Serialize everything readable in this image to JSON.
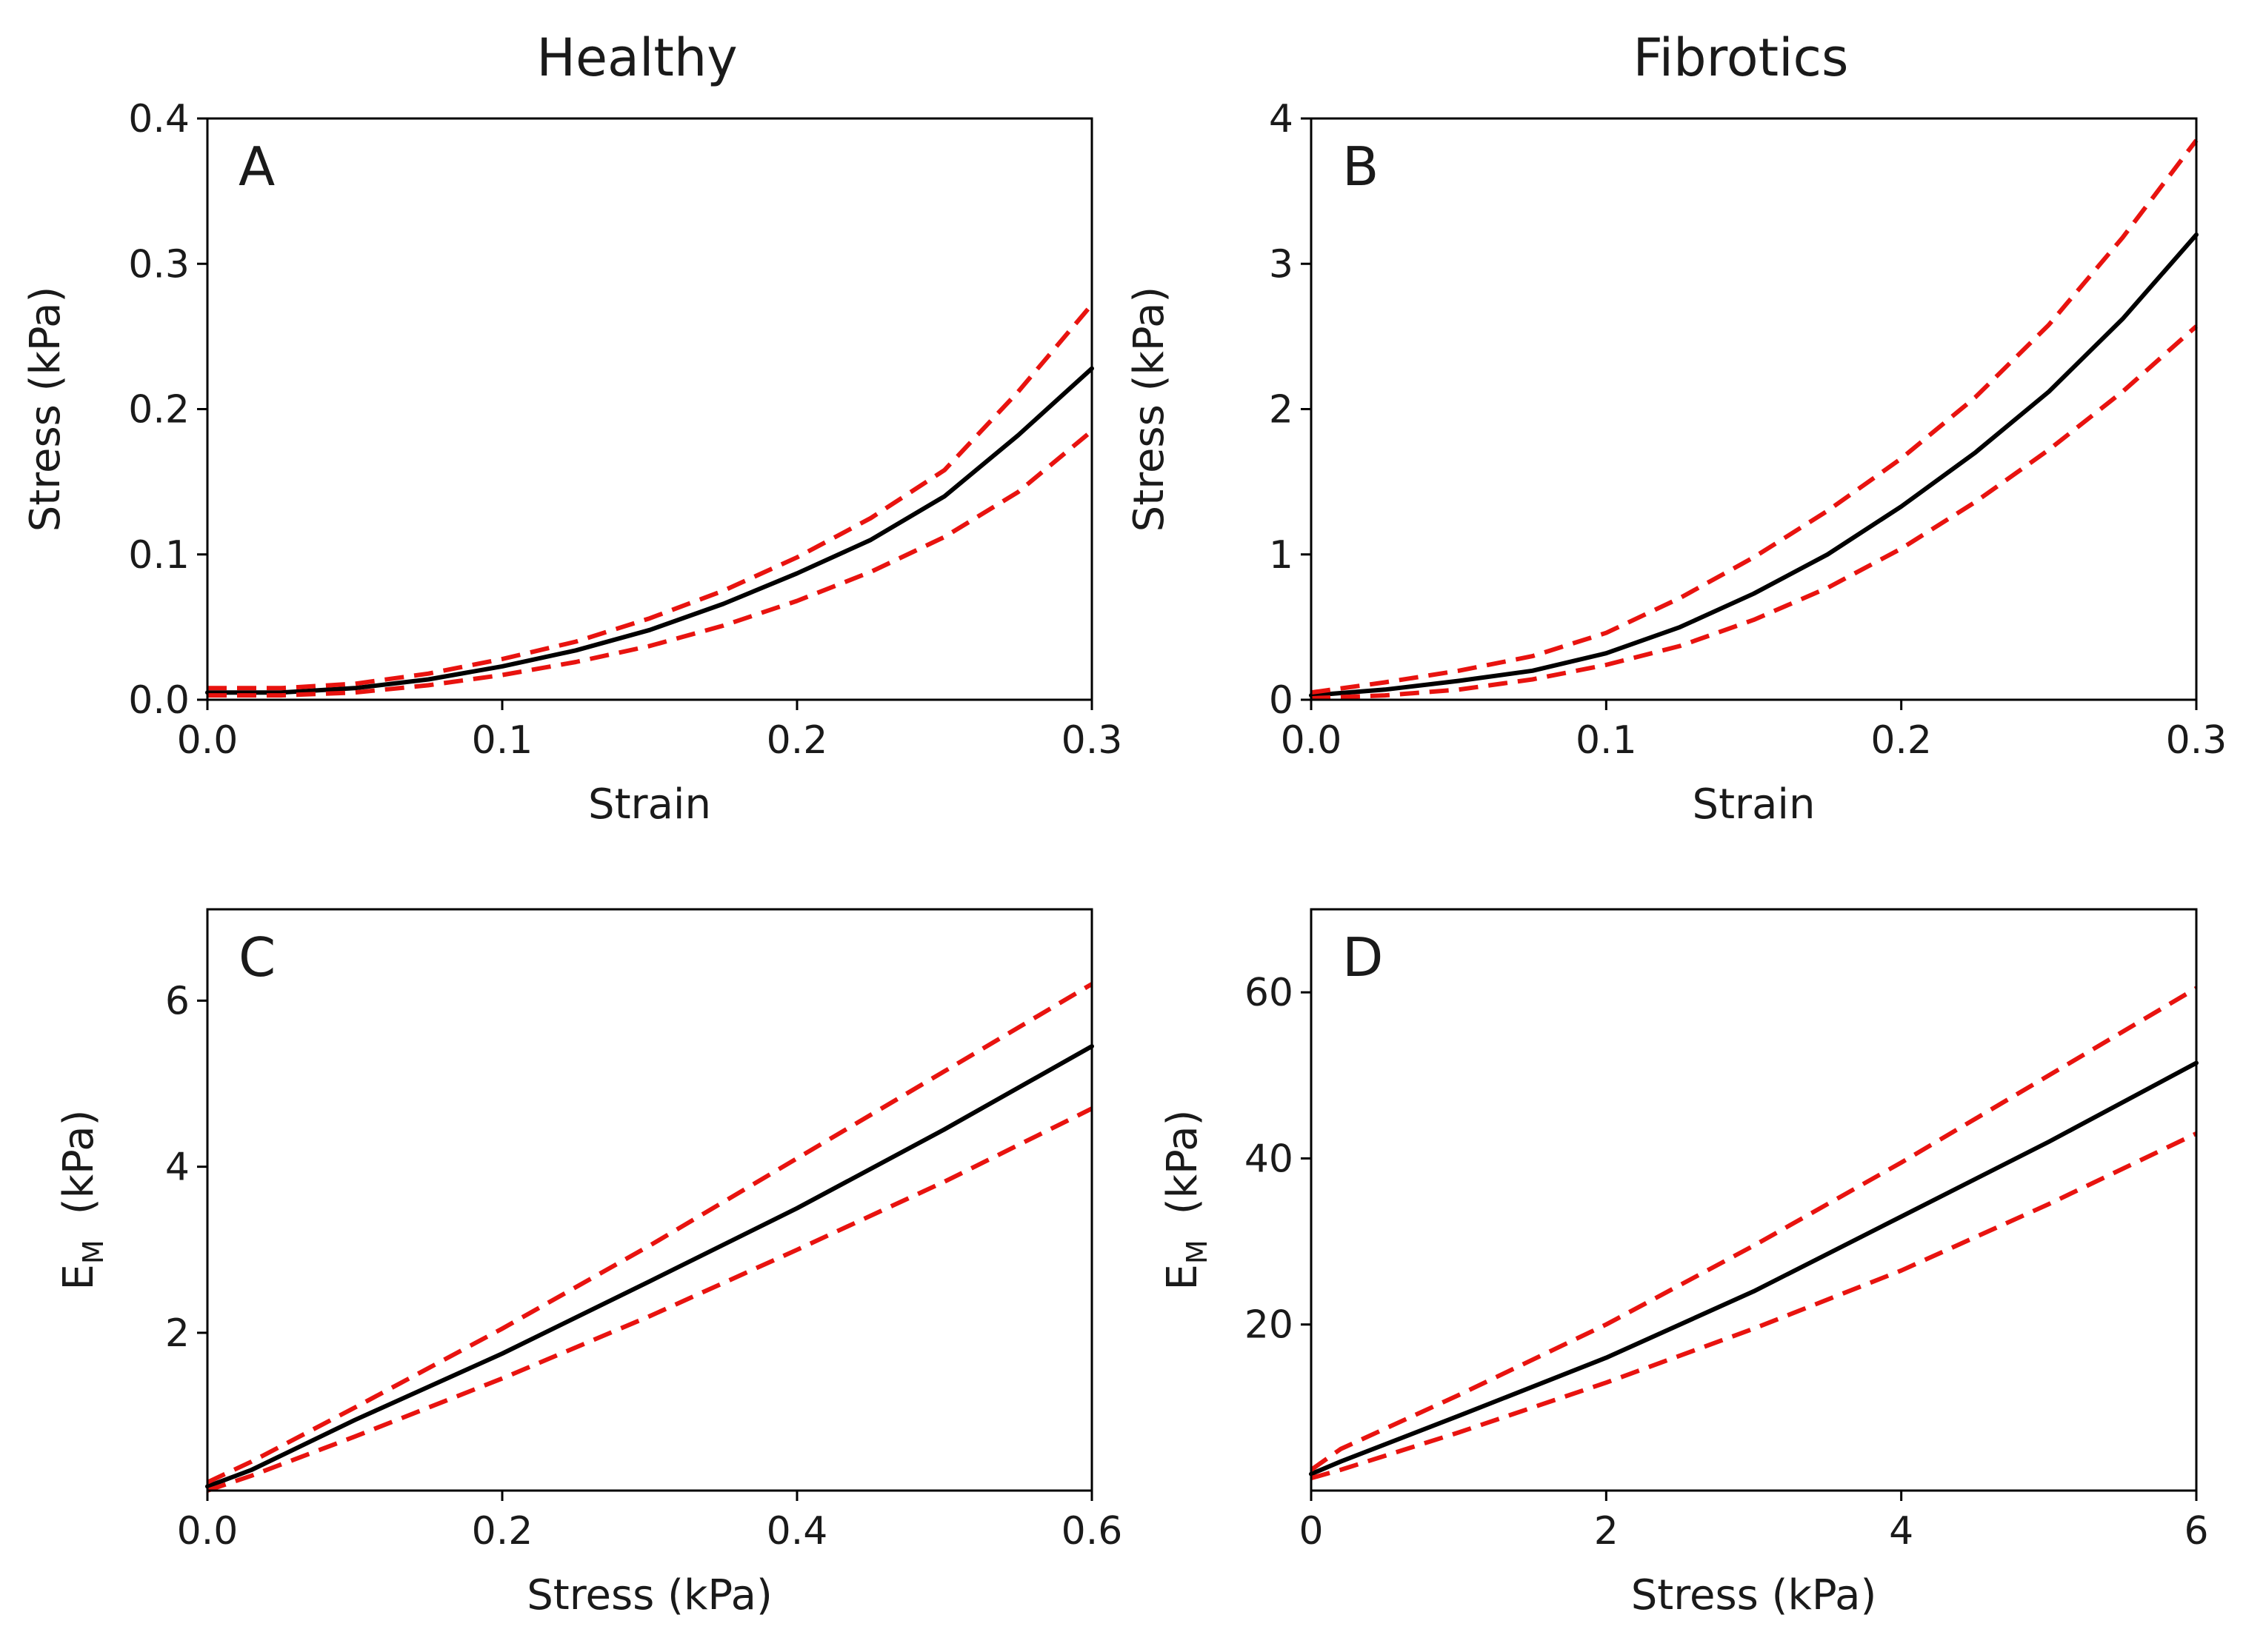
{
  "column_titles": [
    "Healthy",
    "Fibrotics"
  ],
  "colors": {
    "mean": "#000000",
    "bound": "#e8130f"
  },
  "chart_data": [
    {
      "panel": "A",
      "column": "Healthy",
      "type": "line",
      "xlabel": "Strain",
      "ylabel": "Stress (kPa)",
      "xlim": [
        0,
        0.3
      ],
      "ylim": [
        0,
        0.4
      ],
      "xticks": [
        0,
        0.1,
        0.2,
        0.3
      ],
      "xtick_labels": [
        "0.0",
        "0.1",
        "0.2",
        "0.3"
      ],
      "yticks": [
        0,
        0.1,
        0.2,
        0.3,
        0.4
      ],
      "ytick_labels": [
        "0.0",
        "0.1",
        "0.2",
        "0.3",
        "0.4"
      ],
      "series": [
        {
          "name": "mean",
          "style": "solid",
          "x": [
            0,
            0.025,
            0.05,
            0.075,
            0.1,
            0.125,
            0.15,
            0.175,
            0.2,
            0.225,
            0.25,
            0.275,
            0.3
          ],
          "y": [
            0.005,
            0.005,
            0.008,
            0.014,
            0.023,
            0.034,
            0.048,
            0.066,
            0.087,
            0.11,
            0.14,
            0.182,
            0.228
          ]
        },
        {
          "name": "upper",
          "style": "dashed",
          "x": [
            0,
            0.025,
            0.05,
            0.075,
            0.1,
            0.125,
            0.15,
            0.175,
            0.2,
            0.225,
            0.25,
            0.275,
            0.3
          ],
          "y": [
            0.008,
            0.008,
            0.011,
            0.018,
            0.028,
            0.04,
            0.056,
            0.075,
            0.098,
            0.125,
            0.158,
            0.212,
            0.272
          ]
        },
        {
          "name": "lower",
          "style": "dashed",
          "x": [
            0,
            0.025,
            0.05,
            0.075,
            0.1,
            0.125,
            0.15,
            0.175,
            0.2,
            0.225,
            0.25,
            0.275,
            0.3
          ],
          "y": [
            0.003,
            0.003,
            0.005,
            0.01,
            0.017,
            0.026,
            0.037,
            0.051,
            0.068,
            0.088,
            0.112,
            0.143,
            0.185
          ]
        }
      ]
    },
    {
      "panel": "B",
      "column": "Fibrotics",
      "type": "line",
      "xlabel": "Strain",
      "ylabel": "Stress (kPa)",
      "xlim": [
        0,
        0.3
      ],
      "ylim": [
        0,
        4
      ],
      "xticks": [
        0,
        0.1,
        0.2,
        0.3
      ],
      "xtick_labels": [
        "0.0",
        "0.1",
        "0.2",
        "0.3"
      ],
      "yticks": [
        0,
        1,
        2,
        3,
        4
      ],
      "ytick_labels": [
        "0",
        "1",
        "2",
        "3",
        "4"
      ],
      "series": [
        {
          "name": "mean",
          "style": "solid",
          "x": [
            0,
            0.025,
            0.05,
            0.075,
            0.1,
            0.125,
            0.15,
            0.175,
            0.2,
            0.225,
            0.25,
            0.275,
            0.3
          ],
          "y": [
            0.03,
            0.07,
            0.13,
            0.2,
            0.32,
            0.5,
            0.73,
            1.0,
            1.33,
            1.7,
            2.12,
            2.62,
            3.2
          ]
        },
        {
          "name": "upper",
          "style": "dashed",
          "x": [
            0,
            0.025,
            0.05,
            0.075,
            0.1,
            0.125,
            0.15,
            0.175,
            0.2,
            0.225,
            0.25,
            0.275,
            0.3
          ],
          "y": [
            0.05,
            0.12,
            0.2,
            0.3,
            0.46,
            0.7,
            0.98,
            1.3,
            1.66,
            2.08,
            2.58,
            3.18,
            3.85
          ]
        },
        {
          "name": "lower",
          "style": "dashed",
          "x": [
            0,
            0.025,
            0.05,
            0.075,
            0.1,
            0.125,
            0.15,
            0.175,
            0.2,
            0.225,
            0.25,
            0.275,
            0.3
          ],
          "y": [
            0.01,
            0.03,
            0.07,
            0.14,
            0.24,
            0.37,
            0.55,
            0.77,
            1.04,
            1.36,
            1.72,
            2.12,
            2.57
          ]
        }
      ]
    },
    {
      "panel": "C",
      "column": "Healthy",
      "type": "line",
      "xlabel": "Stress (kPa)",
      "ylabel": "E",
      "ylabel_sub": "M",
      "ylabel_unit": "(kPa)",
      "xlim": [
        0,
        0.6
      ],
      "ylim": [
        0.1,
        7.1
      ],
      "xticks": [
        0,
        0.2,
        0.4,
        0.6
      ],
      "xtick_labels": [
        "0.0",
        "0.2",
        "0.4",
        "0.6"
      ],
      "yticks": [
        2,
        4,
        6
      ],
      "ytick_labels": [
        "2",
        "4",
        "6"
      ],
      "series": [
        {
          "name": "mean",
          "style": "solid",
          "x": [
            0,
            0.03,
            0.1,
            0.2,
            0.3,
            0.4,
            0.5,
            0.6
          ],
          "y": [
            0.15,
            0.35,
            0.95,
            1.75,
            2.62,
            3.5,
            4.45,
            5.45
          ]
        },
        {
          "name": "upper",
          "style": "dashed",
          "x": [
            0,
            0.03,
            0.1,
            0.2,
            0.3,
            0.4,
            0.5,
            0.6
          ],
          "y": [
            0.2,
            0.45,
            1.1,
            2.05,
            3.05,
            4.1,
            5.15,
            6.2
          ]
        },
        {
          "name": "lower",
          "style": "dashed",
          "x": [
            0,
            0.03,
            0.1,
            0.2,
            0.3,
            0.4,
            0.5,
            0.6
          ],
          "y": [
            0.1,
            0.28,
            0.75,
            1.45,
            2.2,
            3.0,
            3.82,
            4.7
          ]
        }
      ]
    },
    {
      "panel": "D",
      "column": "Fibrotics",
      "type": "line",
      "xlabel": "Stress (kPa)",
      "ylabel": "E",
      "ylabel_sub": "M",
      "ylabel_unit": "(kPa)",
      "xlim": [
        0,
        6
      ],
      "ylim": [
        0,
        70
      ],
      "xticks": [
        0,
        2,
        4,
        6
      ],
      "xtick_labels": [
        "0",
        "2",
        "4",
        "6"
      ],
      "yticks": [
        20,
        40,
        60
      ],
      "ytick_labels": [
        "20",
        "40",
        "60"
      ],
      "series": [
        {
          "name": "mean",
          "style": "solid",
          "x": [
            0,
            0.2,
            1,
            2,
            3,
            4,
            5,
            6
          ],
          "y": [
            2,
            3.5,
            9,
            16,
            24,
            33,
            42,
            51.5
          ]
        },
        {
          "name": "upper",
          "style": "dashed",
          "x": [
            0,
            0.2,
            1,
            2,
            3,
            4,
            5,
            6
          ],
          "y": [
            2.5,
            5,
            11.5,
            20,
            29.5,
            39.5,
            50,
            60.5
          ]
        },
        {
          "name": "lower",
          "style": "dashed",
          "x": [
            0,
            0.2,
            1,
            2,
            3,
            4,
            5,
            6
          ],
          "y": [
            1.5,
            2.5,
            7,
            13,
            19.5,
            26.5,
            34.5,
            43
          ]
        }
      ]
    }
  ]
}
